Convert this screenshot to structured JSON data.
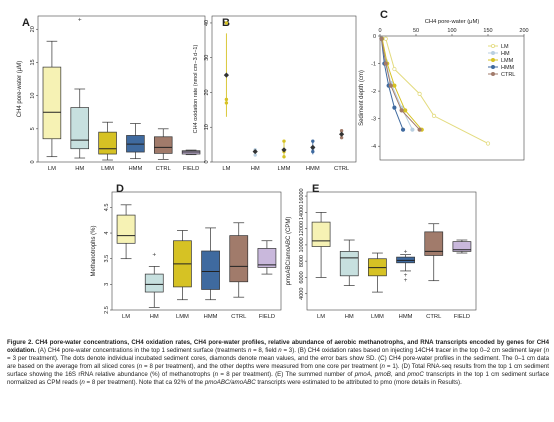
{
  "chart_data": [
    {
      "type": "box",
      "panel": "A",
      "ylabel": "CH4 pore-water (μM)",
      "ylim": [
        0,
        22
      ],
      "yticks": [
        0,
        5,
        10,
        15,
        20
      ],
      "categories": [
        "LM",
        "HM",
        "LMM",
        "HMM",
        "CTRL",
        "FIELD"
      ],
      "colors": [
        "#f6f2b4",
        "#c7e0df",
        "#d6c224",
        "#3f6a9f",
        "#a17b6b",
        "#c9b8dc"
      ],
      "boxes": [
        {
          "min": 0.8,
          "q1": 3.5,
          "median": 7.5,
          "q3": 14.3,
          "max": 18.2,
          "outliers": []
        },
        {
          "min": 0.6,
          "q1": 2.0,
          "median": 3.3,
          "q3": 8.2,
          "max": 11.0,
          "outliers": [
            21.5
          ]
        },
        {
          "min": 0.3,
          "q1": 1.2,
          "median": 2.0,
          "q3": 4.5,
          "max": 6.0,
          "outliers": []
        },
        {
          "min": 0.5,
          "q1": 1.5,
          "median": 2.7,
          "q3": 4.0,
          "max": 5.8,
          "outliers": []
        },
        {
          "min": 0.4,
          "q1": 1.3,
          "median": 2.2,
          "q3": 3.8,
          "max": 5.0,
          "outliers": []
        },
        {
          "min": 1.1,
          "q1": 1.2,
          "median": 1.5,
          "q3": 1.7,
          "max": 1.8,
          "outliers": []
        }
      ]
    },
    {
      "type": "scatter",
      "panel": "B",
      "ylabel": "CH4 oxidation rate (nmol cm−3 d−1)",
      "ylim": [
        0,
        42
      ],
      "yticks": [
        0,
        10,
        20,
        30,
        40
      ],
      "categories": [
        "LM",
        "HM",
        "LMM",
        "HMM",
        "CTRL"
      ],
      "colors": [
        "#d6c224",
        "#b9cfe0",
        "#d6c224",
        "#3f6a9f",
        "#a17b6b"
      ],
      "points": [
        [
          18,
          40,
          17
        ],
        [
          2,
          3,
          3.5
        ],
        [
          1.5,
          6,
          3
        ],
        [
          3,
          6,
          4
        ],
        [
          7,
          8,
          9
        ]
      ],
      "means": [
        25,
        3,
        3.5,
        4.2,
        8
      ],
      "errors": [
        12,
        1,
        2,
        2,
        1.3
      ]
    },
    {
      "type": "line",
      "panel": "C",
      "title": "CH4 pore-water (μM)",
      "ylabel": "Sediment depth (cm)",
      "xlim": [
        0,
        200
      ],
      "ylim": [
        0,
        4.5
      ],
      "xticks": [
        0,
        50,
        100,
        150,
        200
      ],
      "yticks": [
        0,
        1,
        2,
        3,
        4
      ],
      "ytick_labels": [
        "0",
        "-1",
        "-2",
        "-3",
        "-4"
      ],
      "legend": "top-right",
      "series": [
        {
          "name": "LM",
          "color": "#e3db7e",
          "x": [
            8,
            20,
            55,
            75,
            150
          ],
          "y": [
            0.1,
            1.2,
            2.1,
            2.9,
            3.9
          ]
        },
        {
          "name": "HM",
          "color": "#b9cfe0",
          "x": [
            3,
            8,
            15,
            30,
            45
          ],
          "y": [
            0.1,
            0.9,
            1.7,
            2.6,
            3.4
          ]
        },
        {
          "name": "LMM",
          "color": "#d6c224",
          "x": [
            3,
            10,
            20,
            35,
            58
          ],
          "y": [
            0.1,
            1.0,
            1.8,
            2.7,
            3.4
          ]
        },
        {
          "name": "HMM",
          "color": "#3f6a9f",
          "x": [
            2,
            6,
            12,
            20,
            32
          ],
          "y": [
            0.1,
            1.0,
            1.8,
            2.6,
            3.4
          ]
        },
        {
          "name": "CTRL",
          "color": "#a17b6b",
          "x": [
            2,
            8,
            15,
            30,
            55
          ],
          "y": [
            0.1,
            1.0,
            1.8,
            2.7,
            3.4
          ]
        }
      ]
    },
    {
      "type": "box",
      "panel": "D",
      "ylabel": "Methanotrophs (%)",
      "ylim": [
        2.5,
        4.8
      ],
      "yticks": [
        2.5,
        3.0,
        3.5,
        4.0,
        4.5
      ],
      "categories": [
        "LM",
        "HM",
        "LMM",
        "HMM",
        "CTRL",
        "FIELD"
      ],
      "colors": [
        "#f6f2b4",
        "#c7e0df",
        "#d6c224",
        "#3f6a9f",
        "#a17b6b",
        "#c9b8dc"
      ],
      "boxes": [
        {
          "min": 3.5,
          "q1": 3.8,
          "median": 3.95,
          "q3": 4.35,
          "max": 4.55,
          "outliers": []
        },
        {
          "min": 2.55,
          "q1": 2.85,
          "median": 3.0,
          "q3": 3.2,
          "max": 3.35,
          "outliers": [
            3.58
          ]
        },
        {
          "min": 2.7,
          "q1": 2.95,
          "median": 3.4,
          "q3": 3.85,
          "max": 4.05,
          "outliers": []
        },
        {
          "min": 2.7,
          "q1": 2.9,
          "median": 3.25,
          "q3": 3.65,
          "max": 4.1,
          "outliers": []
        },
        {
          "min": 2.75,
          "q1": 3.05,
          "median": 3.35,
          "q3": 3.95,
          "max": 4.2,
          "outliers": []
        },
        {
          "min": 3.2,
          "q1": 3.33,
          "median": 3.38,
          "q3": 3.7,
          "max": 3.85,
          "outliers": []
        }
      ]
    },
    {
      "type": "box",
      "panel": "E",
      "ylabel": "pmoABC/amoABC (CPM)",
      "ylim": [
        2000,
        16500
      ],
      "yticks": [
        4000,
        6000,
        8000,
        10000,
        12000,
        14000,
        16000
      ],
      "categories": [
        "LM",
        "HM",
        "LMM",
        "HMM",
        "CTRL",
        "FIELD"
      ],
      "colors": [
        "#f6f2b4",
        "#c7e0df",
        "#d6c224",
        "#3f6a9f",
        "#a17b6b",
        "#c9b8dc"
      ],
      "boxes": [
        {
          "min": 6000,
          "q1": 9800,
          "median": 10500,
          "q3": 12800,
          "max": 14000,
          "outliers": []
        },
        {
          "min": 5000,
          "q1": 6200,
          "median": 8400,
          "q3": 9200,
          "max": 10600,
          "outliers": []
        },
        {
          "min": 4200,
          "q1": 6200,
          "median": 7200,
          "q3": 8300,
          "max": 9000,
          "outliers": []
        },
        {
          "min": 6800,
          "q1": 7800,
          "median": 8100,
          "q3": 8500,
          "max": 8800,
          "outliers": [
            6300,
            5700,
            9200
          ]
        },
        {
          "min": 5600,
          "q1": 8700,
          "median": 9200,
          "q3": 11600,
          "max": 12600,
          "outliers": []
        },
        {
          "min": 9000,
          "q1": 9200,
          "median": 9400,
          "q3": 10400,
          "max": 10600,
          "outliers": []
        }
      ]
    }
  ],
  "caption": {
    "title": "Figure 2. CH4 pore-water concentrations, CH4 oxidation rates, CH4 pore-water profiles, relative abundance of aerobic methanotrophs, and RNA transcripts encoded by genes for CH4 oxidation.",
    "a1": "(A) CH4 pore-water concentrations in the top 1 sediment surface (treatments ",
    "a1n": "n",
    "a2": " = 8, field ",
    "a2n": "n",
    "a3": " = 3). (B) CH4 oxidation rates based on injecting 14CH4 tracer in the top 0–2 cm sediment layer (",
    "a3n": "n",
    "a4": " = 3 per treatment). The dots denote individual incubated sediment cores, diamonds denote mean values, and the error bars show SD. (C) CH4 pore-water profiles in the sediment. The 0–1 cm data are based on the average from all sliced cores (",
    "a4n": "n",
    "a5": " = 8 per treatment), and the other depths were measured from one core per treatment (",
    "a5n": "n",
    "a6": " = 1). (D) Total RNA-seq results from the top 1 cm sediment surface showing the 16S rRNA relative abundance (%) of methanotrophs (",
    "a6n": "n",
    "a7": " = 8 per treatment). (E) The summed number of ",
    "g1": "pmoA",
    "a8": ", ",
    "g2": "pmoB",
    "a9": ", and ",
    "g3": "pmoC",
    "a10": " transcripts in the top 1 cm sediment surface normalized as CPM reads (",
    "a10n": "n",
    "a11": " = 8 per treatment). Note that ca 92% of the ",
    "g4": "pmoABC/amoABC",
    "a12": " transcripts were estimated to be attributed to pmo (more details in Results)."
  }
}
